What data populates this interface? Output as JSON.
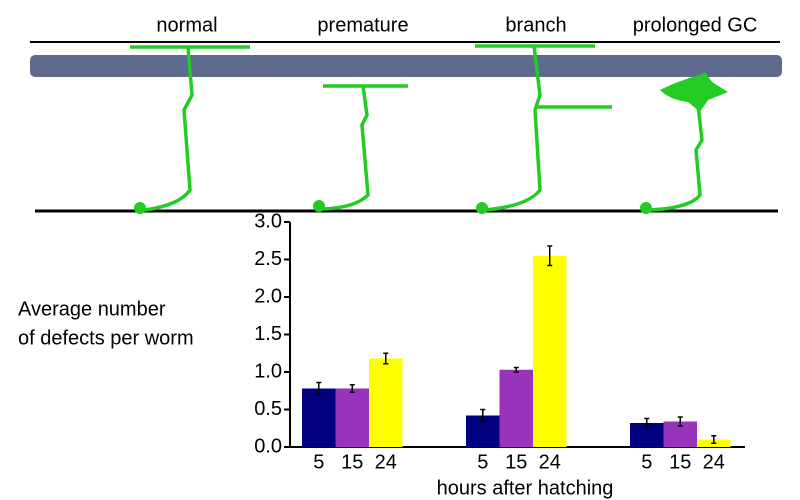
{
  "diagram": {
    "labels": [
      "normal",
      "premature",
      "branch",
      "prolonged GC"
    ]
  },
  "chart_data": {
    "type": "grouped-bar",
    "ylabel": [
      "Average number",
      "of defects per worm"
    ],
    "xlabel": "hours after hatching",
    "colors": [
      "#000080",
      "#9933bb",
      "#ffff00"
    ],
    "groups": [
      {
        "categories": [
          "5",
          "15",
          "24"
        ],
        "values": [
          0.78,
          0.78,
          1.18
        ],
        "errors": [
          0.08,
          0.05,
          0.07
        ]
      },
      {
        "categories": [
          "5",
          "15",
          "24"
        ],
        "values": [
          0.42,
          1.03,
          2.55
        ],
        "errors": [
          0.08,
          0.03,
          0.13
        ]
      },
      {
        "categories": [
          "5",
          "15",
          "24"
        ],
        "values": [
          0.32,
          0.34,
          0.1
        ],
        "errors": [
          0.06,
          0.06,
          0.05
        ]
      }
    ],
    "ylim": [
      0,
      3
    ],
    "yticks": [
      {
        "value": 0,
        "label": "0.0"
      },
      0.5,
      {
        "value": 1,
        "label": "1.0"
      },
      1.5,
      {
        "value": 2,
        "label": "2.0"
      },
      2.5,
      {
        "value": 3,
        "label": "3.0"
      }
    ]
  }
}
